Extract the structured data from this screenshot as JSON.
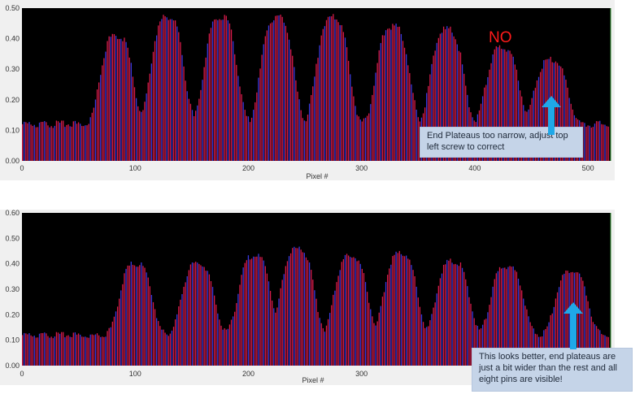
{
  "colors": {
    "plot_bg": "#000000",
    "bar_a": "#d81b4a",
    "bar_b": "#3a3ae0",
    "frame_bg": "#f0f0f0",
    "arrow": "#1fa8e8",
    "annotation_red": "#ff1a1a",
    "note_bg": "#c5d4e8"
  },
  "annotations": {
    "verdict": "NO",
    "note_top": "End Plateaus too narrow, adjust top left screw to correct",
    "note_bottom": "This looks better, end plateaus are just a bit wider than the rest and all eight pins are visible!",
    "arrow_icon": "up-arrow-icon"
  },
  "chart_data": [
    {
      "type": "bar",
      "xlabel": "Pixel #",
      "ylabel": "",
      "xlim": [
        0,
        520
      ],
      "ylim": [
        0,
        0.5
      ],
      "yticks": [
        "0.00",
        "0.10",
        "0.20",
        "0.30",
        "0.40",
        "0.50"
      ],
      "xticks": [
        "0",
        "100",
        "200",
        "300",
        "400",
        "500"
      ],
      "baseline_level": 0.12,
      "plateaus": [
        {
          "center": 83,
          "peak": 0.41
        },
        {
          "center": 128,
          "peak": 0.47
        },
        {
          "center": 175,
          "peak": 0.47
        },
        {
          "center": 225,
          "peak": 0.47
        },
        {
          "center": 274,
          "peak": 0.47
        },
        {
          "center": 327,
          "peak": 0.44
        },
        {
          "center": 375,
          "peak": 0.43
        },
        {
          "center": 424,
          "peak": 0.37
        },
        {
          "center": 467,
          "peak": 0.33
        }
      ],
      "series": [
        {
          "name": "",
          "values": [
            0.12,
            0.13,
            0.2,
            0.41,
            0.41,
            0.24,
            0.47,
            0.24,
            0.47,
            0.24,
            0.47,
            0.24,
            0.47,
            0.22,
            0.44,
            0.21,
            0.43,
            0.2,
            0.37,
            0.19,
            0.33,
            0.15,
            0.13
          ]
        }
      ]
    },
    {
      "type": "bar",
      "xlabel": "Pixel #",
      "ylabel": "",
      "xlim": [
        0,
        520
      ],
      "ylim": [
        0,
        0.6
      ],
      "yticks": [
        "0.00",
        "0.10",
        "0.20",
        "0.30",
        "0.40",
        "0.50",
        "0.60"
      ],
      "xticks": [
        "0",
        "100",
        "200",
        "300"
      ],
      "baseline_level": 0.12,
      "plateaus": [
        {
          "center": 100,
          "peak": 0.4
        },
        {
          "center": 155,
          "peak": 0.4
        },
        {
          "center": 205,
          "peak": 0.43
        },
        {
          "center": 243,
          "peak": 0.46
        },
        {
          "center": 290,
          "peak": 0.43
        },
        {
          "center": 334,
          "peak": 0.44
        },
        {
          "center": 380,
          "peak": 0.41
        },
        {
          "center": 428,
          "peak": 0.39
        },
        {
          "center": 485,
          "peak": 0.37
        }
      ],
      "series": [
        {
          "name": "",
          "values": [
            0.12,
            0.12,
            0.13,
            0.4,
            0.23,
            0.4,
            0.23,
            0.43,
            0.26,
            0.46,
            0.24,
            0.43,
            0.25,
            0.44,
            0.25,
            0.41,
            0.24,
            0.39,
            0.25,
            0.37,
            0.18
          ]
        }
      ]
    }
  ]
}
